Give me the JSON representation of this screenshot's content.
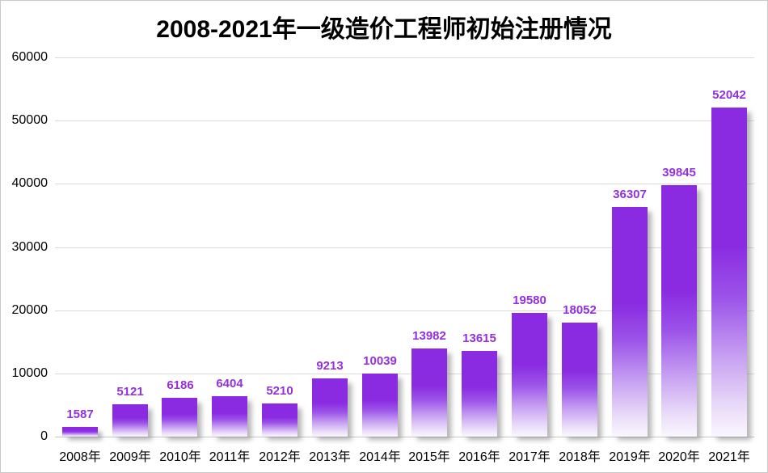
{
  "title": "2008-2021年一级造价工程师初始注册情况",
  "colors": {
    "bar_top": "#8a2be2",
    "bar_fade_end": "#faf7fe",
    "value_label": "#9430e0",
    "grid": "#d9d9d9",
    "axis_text": "#000000",
    "title_text": "#000000"
  },
  "chart_data": {
    "type": "bar",
    "title": "2008-2021年一级造价工程师初始注册情况",
    "categories": [
      "2008年",
      "2009年",
      "2010年",
      "2011年",
      "2012年",
      "2013年",
      "2014年",
      "2015年",
      "2016年",
      "2017年",
      "2018年",
      "2019年",
      "2020年",
      "2021年"
    ],
    "values": [
      1587,
      5121,
      6186,
      6404,
      5210,
      9213,
      10039,
      13982,
      13615,
      19580,
      18052,
      36307,
      39845,
      52042
    ],
    "value_labels": [
      "1587",
      "5121",
      "6186",
      "6404",
      "5210",
      "9213",
      "10039",
      "13982",
      "13615",
      "19580",
      "18052",
      "36307",
      "39845",
      "52042"
    ],
    "xlabel": "",
    "ylabel": "",
    "ylim": [
      0,
      60000
    ],
    "ytick_step": 10000,
    "yticks": [
      "0",
      "10000",
      "20000",
      "30000",
      "40000",
      "50000",
      "60000"
    ],
    "grid": true,
    "legend": "none",
    "bar_style": "gradient-fade-to-white",
    "data_labels": "above-bars"
  }
}
